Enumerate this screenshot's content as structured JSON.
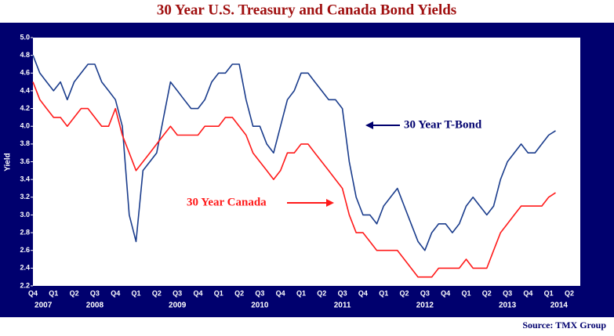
{
  "chart_data": {
    "type": "line",
    "title": "30 Year U.S. Treasury and Canada Bond Yields",
    "y_label": "Yield",
    "source": "Source: TMX Group",
    "categories": [
      "Q4",
      null,
      null,
      "Q1",
      null,
      null,
      "Q2",
      null,
      null,
      "Q3",
      null,
      null,
      "Q4",
      null,
      null,
      "Q1",
      null,
      null,
      "Q2",
      null,
      null,
      "Q3",
      null,
      null,
      "Q4",
      null,
      null,
      "Q1",
      null,
      null,
      "Q2",
      null,
      null,
      "Q3",
      null,
      null,
      "Q4",
      null,
      null,
      "Q1",
      null,
      null,
      "Q2",
      null,
      null,
      "Q3",
      null,
      null,
      "Q4",
      null,
      null,
      "Q1",
      null,
      null,
      "Q2",
      null,
      null,
      "Q3",
      null,
      null,
      "Q4",
      null,
      null,
      "Q1",
      null,
      null,
      "Q2",
      null,
      null,
      "Q3",
      null,
      null,
      "Q4",
      null,
      null,
      "Q1",
      null,
      null,
      "Q2"
    ],
    "year_labels": [
      "2007",
      "2008",
      "2009",
      "2010",
      "2011",
      "2012",
      "2013",
      "2014"
    ],
    "series": [
      {
        "name": "30 Year T-Bond",
        "color": "#1a3c8c",
        "values": [
          4.8,
          4.6,
          4.5,
          4.4,
          4.5,
          4.3,
          4.5,
          4.6,
          4.7,
          4.7,
          4.5,
          4.4,
          4.3,
          4.0,
          3.0,
          2.7,
          3.5,
          3.6,
          3.7,
          4.1,
          4.5,
          4.4,
          4.3,
          4.2,
          4.2,
          4.3,
          4.5,
          4.6,
          4.6,
          4.7,
          4.7,
          4.3,
          4.0,
          4.0,
          3.8,
          3.7,
          4.0,
          4.3,
          4.4,
          4.6,
          4.6,
          4.5,
          4.4,
          4.3,
          4.3,
          4.2,
          3.6,
          3.2,
          3.0,
          3.0,
          2.9,
          3.1,
          3.2,
          3.3,
          3.1,
          2.9,
          2.7,
          2.6,
          2.8,
          2.9,
          2.9,
          2.8,
          2.9,
          3.1,
          3.2,
          3.1,
          3.0,
          3.1,
          3.4,
          3.6,
          3.7,
          3.8,
          3.7,
          3.7,
          3.8,
          3.9,
          3.95,
          null,
          null
        ]
      },
      {
        "name": "30 Year Canada",
        "color": "#ff1a1a",
        "values": [
          4.5,
          4.3,
          4.2,
          4.1,
          4.1,
          4.0,
          4.1,
          4.2,
          4.2,
          4.1,
          4.0,
          4.0,
          4.2,
          3.9,
          3.7,
          3.5,
          3.6,
          3.7,
          3.8,
          3.9,
          4.0,
          3.9,
          3.9,
          3.9,
          3.9,
          4.0,
          4.0,
          4.0,
          4.1,
          4.1,
          4.0,
          3.9,
          3.7,
          3.6,
          3.5,
          3.4,
          3.5,
          3.7,
          3.7,
          3.8,
          3.8,
          3.7,
          3.6,
          3.5,
          3.4,
          3.3,
          3.0,
          2.8,
          2.8,
          2.7,
          2.6,
          2.6,
          2.6,
          2.6,
          2.5,
          2.4,
          2.3,
          2.3,
          2.3,
          2.4,
          2.4,
          2.4,
          2.4,
          2.5,
          2.4,
          2.4,
          2.4,
          2.6,
          2.8,
          2.9,
          3.0,
          3.1,
          3.1,
          3.1,
          3.1,
          3.2,
          3.25,
          null,
          null
        ]
      }
    ],
    "ylim": [
      2.2,
      5.0
    ],
    "yticks": [
      2.2,
      2.4,
      2.6,
      2.8,
      {
        "value": 3.0,
        "label": "3.0"
      },
      3.2,
      3.4,
      3.6,
      3.8,
      {
        "value": 4.0,
        "label": "4.0"
      },
      4.2,
      4.4,
      4.6,
      4.8,
      {
        "value": 5.0,
        "label": "5.0"
      }
    ]
  }
}
